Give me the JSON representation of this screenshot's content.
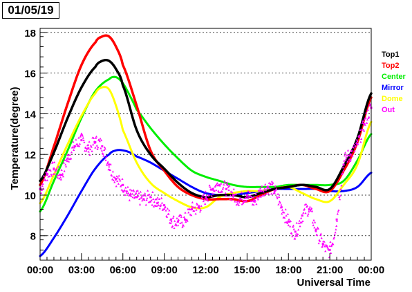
{
  "date_label": "01/05/19",
  "chart_data": {
    "type": "line",
    "title": "",
    "xlabel": "Universal Time",
    "ylabel": "Temperature(degree)",
    "x_range": [
      "00:00",
      "24:00"
    ],
    "xlim_hours": [
      0,
      24
    ],
    "ylim": [
      6.8,
      18.2
    ],
    "x_ticks": [
      "00:00",
      "03:00",
      "06:00",
      "09:00",
      "12:00",
      "15:00",
      "18:00",
      "21:00",
      "00:00"
    ],
    "y_ticks": [
      8,
      10,
      12,
      14,
      16,
      18
    ],
    "grid": "horizontal dashed",
    "legend_position": "right",
    "series": [
      {
        "name": "Top1",
        "color": "#000000",
        "style": "line",
        "x": [
          0,
          1,
          2,
          3,
          4,
          4.5,
          5,
          5.5,
          6,
          7,
          8,
          9,
          10,
          11,
          12,
          13,
          14,
          15,
          16,
          17,
          18,
          19,
          20,
          21,
          22,
          23,
          24
        ],
        "y": [
          10.7,
          12.1,
          13.8,
          15.3,
          16.3,
          16.6,
          16.6,
          16.2,
          15.4,
          13.2,
          12.0,
          11.3,
          10.6,
          10.1,
          9.9,
          10.0,
          10.0,
          9.9,
          10.1,
          10.3,
          10.4,
          10.5,
          10.4,
          10.3,
          11.4,
          12.8,
          15.0
        ]
      },
      {
        "name": "Top2",
        "color": "#ff0000",
        "style": "line",
        "x": [
          0,
          1,
          2,
          3,
          4,
          4.5,
          5,
          5.5,
          6,
          7,
          8,
          9,
          10,
          11,
          12,
          13,
          14,
          15,
          16,
          17,
          18,
          19,
          20,
          21,
          22,
          23,
          24
        ],
        "y": [
          10.5,
          12.4,
          14.5,
          16.4,
          17.5,
          17.8,
          17.8,
          17.3,
          16.4,
          14.4,
          12.2,
          11.2,
          10.4,
          10.0,
          9.8,
          9.8,
          9.8,
          9.7,
          10.0,
          10.3,
          10.4,
          10.5,
          10.3,
          10.2,
          11.2,
          12.6,
          14.8
        ]
      },
      {
        "name": "Center",
        "color": "#00ee00",
        "style": "line",
        "x": [
          0,
          1,
          2,
          3,
          4,
          5,
          5.5,
          6,
          6.5,
          7,
          8,
          9,
          10,
          11,
          12,
          13,
          14,
          15,
          16,
          17,
          18,
          19,
          20,
          21,
          22,
          23,
          24
        ],
        "y": [
          9.2,
          10.7,
          12.2,
          13.8,
          15.1,
          15.7,
          15.8,
          15.5,
          14.9,
          14.2,
          13.3,
          12.5,
          11.8,
          11.2,
          10.9,
          10.7,
          10.5,
          10.4,
          10.4,
          10.4,
          10.5,
          10.5,
          10.5,
          10.5,
          10.7,
          11.7,
          13.0
        ]
      },
      {
        "name": "Mirror",
        "color": "#0000ff",
        "style": "line",
        "x": [
          0,
          1,
          2,
          3,
          4,
          5,
          5.5,
          6,
          6.5,
          7,
          8,
          9,
          10,
          11,
          12,
          13,
          14,
          15,
          16,
          17,
          18,
          19,
          20,
          21,
          22,
          23,
          24
        ],
        "y": [
          7.0,
          7.9,
          9.0,
          10.2,
          11.3,
          12.0,
          12.2,
          12.2,
          12.1,
          11.9,
          11.6,
          11.2,
          10.8,
          10.4,
          10.1,
          10.0,
          10.0,
          10.1,
          10.2,
          10.3,
          10.3,
          10.3,
          10.3,
          10.2,
          10.2,
          10.4,
          11.1
        ]
      },
      {
        "name": "Dome",
        "color": "#ffff00",
        "style": "line",
        "x": [
          0,
          1,
          2,
          3,
          4,
          4.5,
          5,
          5.5,
          6,
          7,
          8,
          9,
          10,
          11,
          12,
          13,
          14,
          15,
          16,
          17,
          18,
          19,
          20,
          21,
          22,
          23,
          24
        ],
        "y": [
          9.6,
          11.0,
          12.5,
          13.9,
          15.0,
          15.3,
          15.2,
          14.4,
          13.2,
          11.6,
          10.6,
          10.1,
          9.7,
          9.4,
          9.4,
          9.9,
          10.1,
          10.2,
          10.2,
          10.3,
          10.4,
          10.1,
          9.8,
          9.7,
          10.5,
          11.5,
          13.6
        ]
      },
      {
        "name": "Out",
        "color": "#ff00ff",
        "style": "markers",
        "x": [
          0,
          0.5,
          1,
          1.5,
          2,
          2.5,
          3,
          3.5,
          4,
          4.5,
          5,
          5.5,
          6,
          6.5,
          7,
          7.5,
          8,
          8.5,
          9,
          9.5,
          10,
          10.5,
          11,
          11.5,
          12,
          12.5,
          13,
          13.5,
          14,
          14.5,
          15,
          15.5,
          16,
          16.5,
          17,
          17.5,
          18,
          18.5,
          19,
          19.5,
          20,
          20.5,
          21,
          21.5,
          22,
          22.5,
          23,
          23.5,
          24
        ],
        "y": [
          10.3,
          11.0,
          11.3,
          11.0,
          11.8,
          12.4,
          12.7,
          12.3,
          12.6,
          12.4,
          11.5,
          10.8,
          10.5,
          10.0,
          9.9,
          9.8,
          9.9,
          9.6,
          9.5,
          8.8,
          8.7,
          8.8,
          9.3,
          9.4,
          9.9,
          10.3,
          10.5,
          10.3,
          10.0,
          9.8,
          10.0,
          9.7,
          10.2,
          10.4,
          10.2,
          9.4,
          8.7,
          8.2,
          9.0,
          9.3,
          8.3,
          7.6,
          7.3,
          8.8,
          11.5,
          12.0,
          12.5,
          13.5,
          14.3
        ]
      }
    ]
  }
}
